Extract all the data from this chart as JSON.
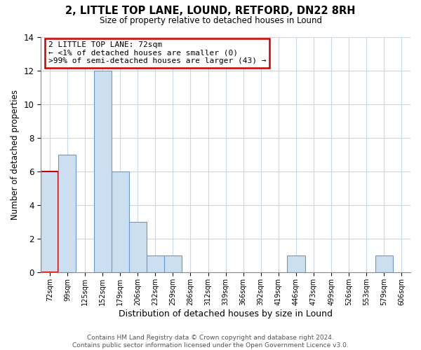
{
  "title": "2, LITTLE TOP LANE, LOUND, RETFORD, DN22 8RH",
  "subtitle": "Size of property relative to detached houses in Lound",
  "xlabel": "Distribution of detached houses by size in Lound",
  "ylabel": "Number of detached properties",
  "bin_labels": [
    "72sqm",
    "99sqm",
    "125sqm",
    "152sqm",
    "179sqm",
    "206sqm",
    "232sqm",
    "259sqm",
    "286sqm",
    "312sqm",
    "339sqm",
    "366sqm",
    "392sqm",
    "419sqm",
    "446sqm",
    "473sqm",
    "499sqm",
    "526sqm",
    "553sqm",
    "579sqm",
    "606sqm"
  ],
  "counts": [
    6,
    7,
    0,
    12,
    6,
    3,
    1,
    1,
    0,
    0,
    0,
    0,
    0,
    0,
    1,
    0,
    0,
    0,
    0,
    1,
    0
  ],
  "bar_color": "#ccdff0",
  "bar_edge_color": "#6699cc",
  "highlight_bar_index": 0,
  "highlight_edge_color": "#cc0000",
  "ylim": [
    0,
    14
  ],
  "yticks": [
    0,
    2,
    4,
    6,
    8,
    10,
    12,
    14
  ],
  "annotation_title": "2 LITTLE TOP LANE: 72sqm",
  "annotation_line1": "← <1% of detached houses are smaller (0)",
  "annotation_line2": ">99% of semi-detached houses are larger (43) →",
  "annotation_box_color": "#ffffff",
  "annotation_box_edge": "#cc0000",
  "footer1": "Contains HM Land Registry data © Crown copyright and database right 2024.",
  "footer2": "Contains public sector information licensed under the Open Government Licence v3.0."
}
